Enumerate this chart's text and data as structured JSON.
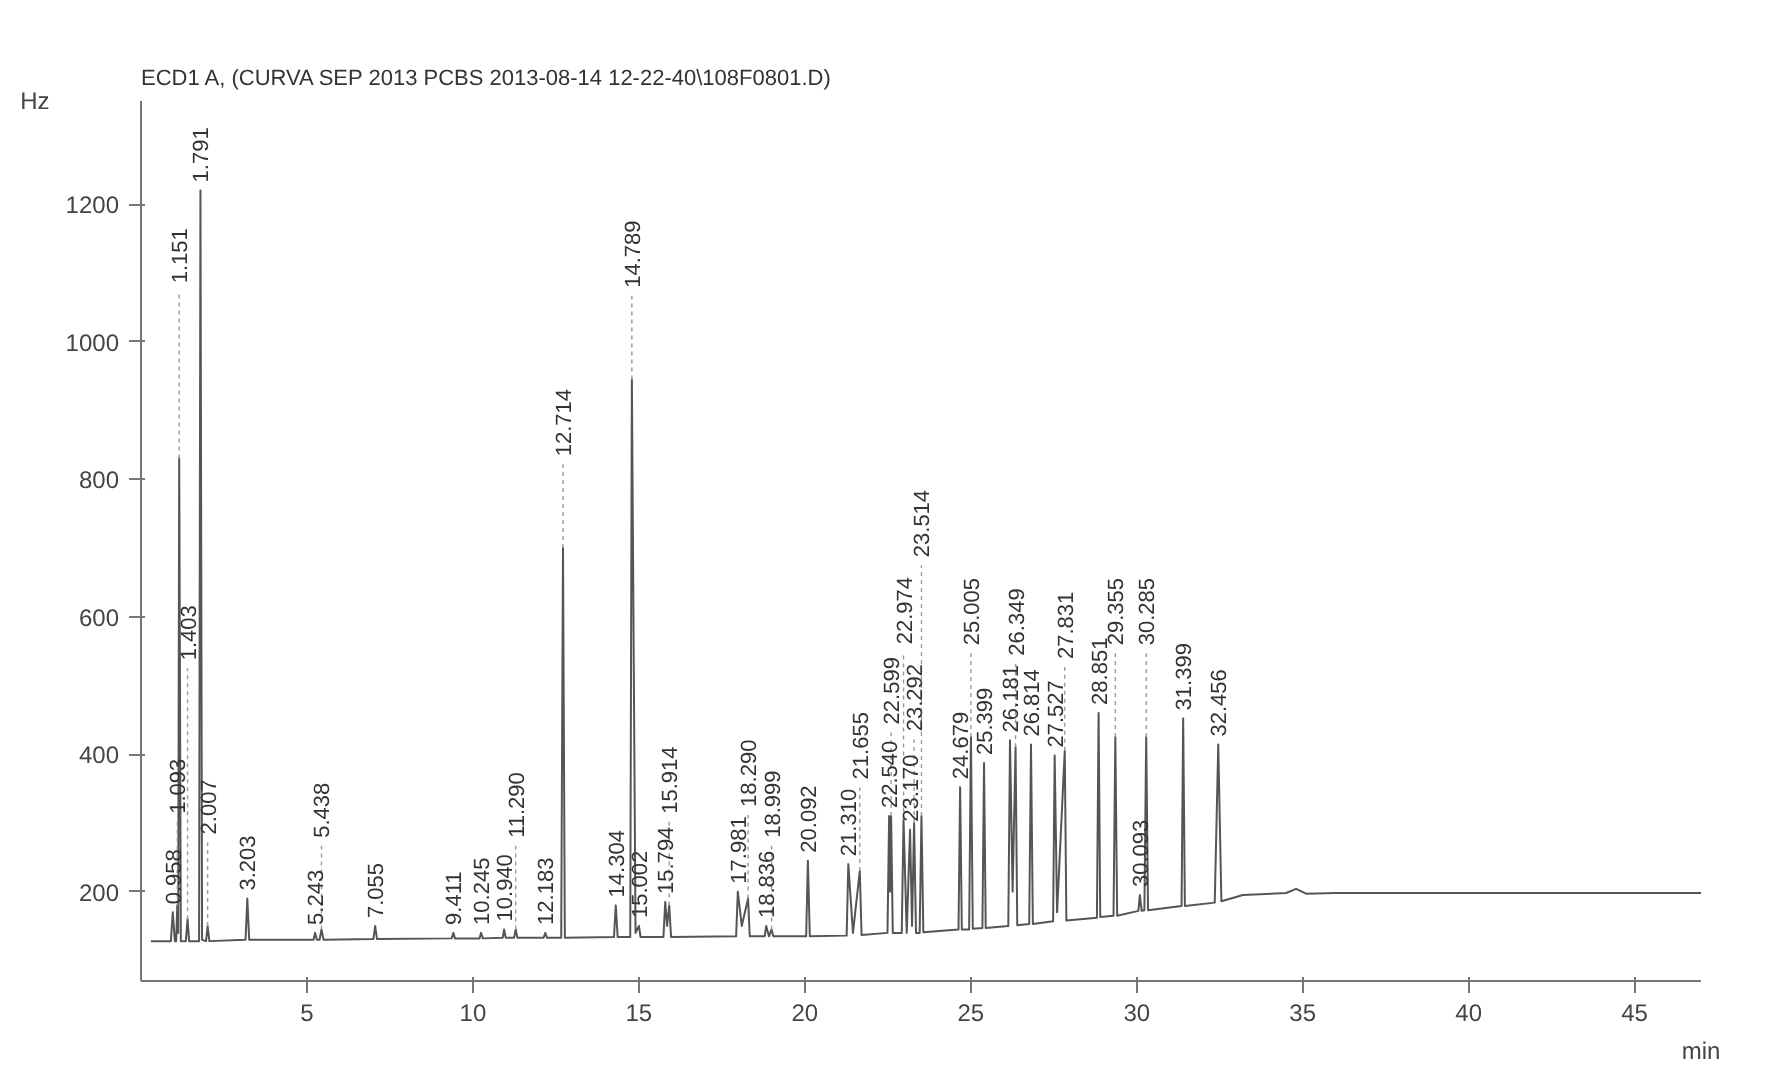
{
  "chart_data": {
    "type": "line",
    "title": "ECD1 A,  (CURVA SEP 2013 PCBS 2013-08-14 12-22-40\\108F0801.D)",
    "xlabel": "min",
    "ylabel": "Hz",
    "xlim": [
      0,
      47
    ],
    "ylim": [
      70,
      1350
    ],
    "xticks": [
      5,
      10,
      15,
      20,
      25,
      30,
      35,
      40,
      45
    ],
    "yticks": [
      200,
      400,
      600,
      800,
      1000,
      1200
    ],
    "line_style": "solid",
    "series": [
      {
        "color": "#555555",
        "x": [
          0.3,
          0.9,
          0.958,
          1.02,
          1.06,
          1.093,
          1.12,
          1.151,
          1.2,
          1.35,
          1.403,
          1.45,
          1.75,
          1.791,
          1.84,
          1.96,
          2.007,
          2.06,
          3.15,
          3.203,
          3.26,
          5.2,
          5.243,
          5.3,
          5.38,
          5.438,
          5.5,
          7.0,
          7.055,
          7.11,
          9.36,
          9.411,
          9.46,
          10.2,
          10.245,
          10.3,
          10.9,
          10.94,
          10.99,
          11.24,
          11.29,
          11.34,
          12.13,
          12.183,
          12.23,
          12.66,
          12.714,
          12.77,
          14.25,
          14.304,
          14.36,
          14.74,
          14.789,
          14.9,
          15.002,
          15.05,
          15.74,
          15.794,
          15.85,
          15.914,
          15.97,
          17.93,
          17.981,
          18.1,
          18.29,
          18.34,
          18.79,
          18.836,
          18.92,
          18.999,
          19.05,
          20.04,
          20.092,
          20.15,
          21.26,
          21.31,
          21.45,
          21.655,
          21.71,
          22.49,
          22.54,
          22.57,
          22.599,
          22.65,
          22.92,
          22.974,
          23.07,
          23.17,
          23.23,
          23.292,
          23.35,
          23.46,
          23.514,
          23.57,
          24.63,
          24.679,
          24.73,
          24.95,
          25.005,
          25.06,
          25.35,
          25.399,
          25.45,
          26.13,
          26.181,
          26.26,
          26.349,
          26.4,
          26.76,
          26.814,
          26.87,
          27.48,
          27.527,
          27.6,
          27.831,
          27.88,
          28.8,
          28.851,
          28.9,
          29.3,
          29.355,
          29.41,
          30.05,
          30.093,
          30.15,
          30.23,
          30.285,
          30.34,
          31.35,
          31.399,
          31.45,
          32.35,
          32.456,
          32.55,
          33.2,
          34.5,
          34.8,
          35.1,
          36,
          40,
          47
        ],
        "values": [
          128,
          128,
          170,
          128,
          128,
          180,
          140,
          830,
          128,
          128,
          160,
          128,
          128,
          1220,
          130,
          128,
          150,
          128,
          130,
          190,
          130,
          130,
          140,
          130,
          130,
          145,
          130,
          131,
          150,
          131,
          132,
          140,
          132,
          132,
          140,
          132,
          133,
          145,
          133,
          133,
          145,
          133,
          133,
          140,
          133,
          133,
          700,
          133,
          134,
          180,
          134,
          134,
          945,
          140,
          150,
          134,
          134,
          185,
          150,
          180,
          134,
          135,
          200,
          150,
          190,
          135,
          135,
          150,
          135,
          145,
          135,
          135,
          245,
          135,
          136,
          240,
          140,
          230,
          137,
          140,
          310,
          200,
          310,
          140,
          140,
          305,
          140,
          290,
          150,
          300,
          140,
          140,
          310,
          141,
          145,
          352,
          145,
          145,
          425,
          146,
          147,
          387,
          147,
          150,
          420,
          200,
          410,
          151,
          153,
          414,
          153,
          157,
          398,
          170,
          405,
          158,
          162,
          460,
          163,
          165,
          425,
          165,
          172,
          195,
          172,
          173,
          425,
          173,
          179,
          452,
          179,
          184,
          414,
          186,
          195,
          198,
          204,
          197,
          198,
          198,
          198
        ]
      }
    ],
    "annotations": [
      {
        "text": "0.958",
        "x": 0.958,
        "y": 170
      },
      {
        "text": "1.093",
        "x": 1.093,
        "y": 180
      },
      {
        "text": "1.151",
        "x": 1.151,
        "y": 830
      },
      {
        "text": "1.403",
        "x": 1.403,
        "y": 160
      },
      {
        "text": "1.791",
        "x": 1.791,
        "y": 1220
      },
      {
        "text": "2.007",
        "x": 2.007,
        "y": 150
      },
      {
        "text": "3.203",
        "x": 3.203,
        "y": 190
      },
      {
        "text": "5.243",
        "x": 5.243,
        "y": 140
      },
      {
        "text": "5.438",
        "x": 5.438,
        "y": 145
      },
      {
        "text": "7.055",
        "x": 7.055,
        "y": 150
      },
      {
        "text": "9.411",
        "x": 9.411,
        "y": 140
      },
      {
        "text": "10.245",
        "x": 10.245,
        "y": 140
      },
      {
        "text": "10.940",
        "x": 10.94,
        "y": 145
      },
      {
        "text": "11.290",
        "x": 11.29,
        "y": 145
      },
      {
        "text": "12.183",
        "x": 12.183,
        "y": 140
      },
      {
        "text": "12.714",
        "x": 12.714,
        "y": 700
      },
      {
        "text": "14.304",
        "x": 14.304,
        "y": 180
      },
      {
        "text": "14.789",
        "x": 14.789,
        "y": 945
      },
      {
        "text": "15.002",
        "x": 15.002,
        "y": 150
      },
      {
        "text": "15.794",
        "x": 15.794,
        "y": 185
      },
      {
        "text": "15.914",
        "x": 15.914,
        "y": 180
      },
      {
        "text": "17.981",
        "x": 17.981,
        "y": 200
      },
      {
        "text": "18.290",
        "x": 18.29,
        "y": 190
      },
      {
        "text": "18.836",
        "x": 18.836,
        "y": 150
      },
      {
        "text": "18.999",
        "x": 18.999,
        "y": 145
      },
      {
        "text": "20.092",
        "x": 20.092,
        "y": 245
      },
      {
        "text": "21.310",
        "x": 21.31,
        "y": 240
      },
      {
        "text": "21.655",
        "x": 21.655,
        "y": 230
      },
      {
        "text": "22.540",
        "x": 22.54,
        "y": 310
      },
      {
        "text": "22.599",
        "x": 22.599,
        "y": 310
      },
      {
        "text": "22.974",
        "x": 22.974,
        "y": 305
      },
      {
        "text": "23.170",
        "x": 23.17,
        "y": 290
      },
      {
        "text": "23.292",
        "x": 23.292,
        "y": 300
      },
      {
        "text": "23.514",
        "x": 23.514,
        "y": 310
      },
      {
        "text": "24.679",
        "x": 24.679,
        "y": 352
      },
      {
        "text": "25.005",
        "x": 25.005,
        "y": 425
      },
      {
        "text": "25.399",
        "x": 25.399,
        "y": 387
      },
      {
        "text": "26.181",
        "x": 26.181,
        "y": 420
      },
      {
        "text": "26.349",
        "x": 26.349,
        "y": 410
      },
      {
        "text": "26.814",
        "x": 26.814,
        "y": 414
      },
      {
        "text": "27.527",
        "x": 27.527,
        "y": 398
      },
      {
        "text": "27.831",
        "x": 27.831,
        "y": 405
      },
      {
        "text": "28.851",
        "x": 28.851,
        "y": 460
      },
      {
        "text": "29.355",
        "x": 29.355,
        "y": 425
      },
      {
        "text": "30.093",
        "x": 30.093,
        "y": 195
      },
      {
        "text": "30.285",
        "x": 30.285,
        "y": 425
      },
      {
        "text": "31.399",
        "x": 31.399,
        "y": 452
      },
      {
        "text": "32.456",
        "x": 32.456,
        "y": 414
      }
    ]
  }
}
